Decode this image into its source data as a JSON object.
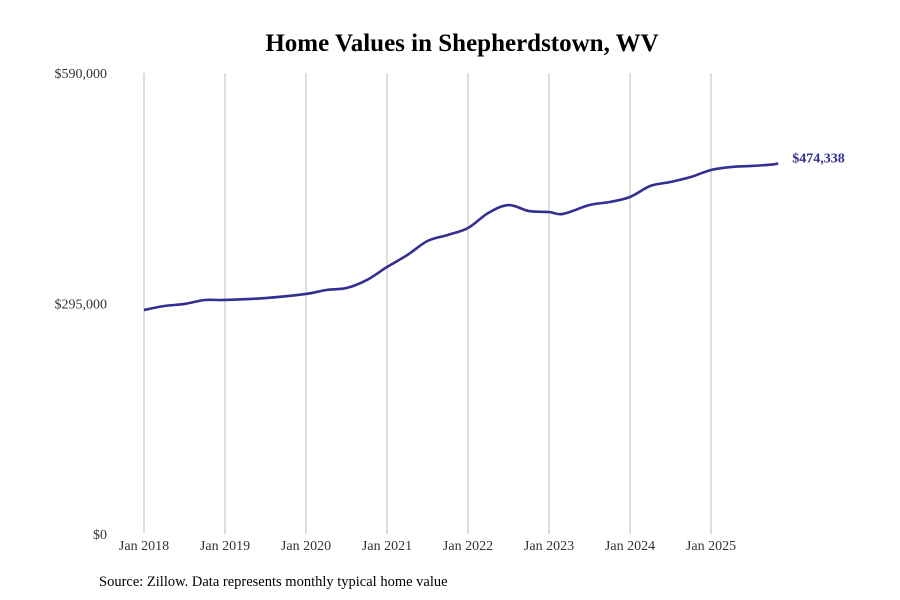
{
  "chart_data": {
    "type": "line",
    "title": "Home Values in Shepherdstown, WV",
    "xlabel": "",
    "ylabel": "",
    "ylim": [
      0,
      590000
    ],
    "y_ticks": [
      0,
      295000,
      590000
    ],
    "y_tick_labels": [
      "$0",
      "$295,000",
      "$590,000"
    ],
    "x_ticks": [
      2018,
      2019,
      2020,
      2021,
      2022,
      2023,
      2024,
      2025
    ],
    "x_tick_labels": [
      "Jan 2018",
      "Jan 2019",
      "Jan 2020",
      "Jan 2021",
      "Jan 2022",
      "Jan 2023",
      "Jan 2024",
      "Jan 2025"
    ],
    "grid": "vertical",
    "line_color": "#332e91",
    "series": [
      {
        "name": "Typical home value",
        "x": [
          2018.0,
          2018.25,
          2018.5,
          2018.75,
          2019.0,
          2019.5,
          2020.0,
          2020.25,
          2020.5,
          2020.75,
          2021.0,
          2021.25,
          2021.5,
          2021.75,
          2022.0,
          2022.25,
          2022.5,
          2022.75,
          2023.0,
          2023.17,
          2023.5,
          2023.75,
          2024.0,
          2024.25,
          2024.5,
          2024.75,
          2025.0,
          2025.25,
          2025.5,
          2025.75,
          2025.83
        ],
        "values": [
          286700,
          291800,
          294400,
          299500,
          299500,
          302000,
          307200,
          312300,
          314800,
          325000,
          341700,
          357000,
          375000,
          382700,
          391600,
          410800,
          421000,
          413400,
          412100,
          409600,
          421000,
          424900,
          431300,
          445400,
          450500,
          456900,
          465900,
          469700,
          471000,
          472800,
          474338
        ]
      }
    ],
    "end_label": "$474,338"
  },
  "source": "Source: Zillow. Data represents monthly typical home value"
}
